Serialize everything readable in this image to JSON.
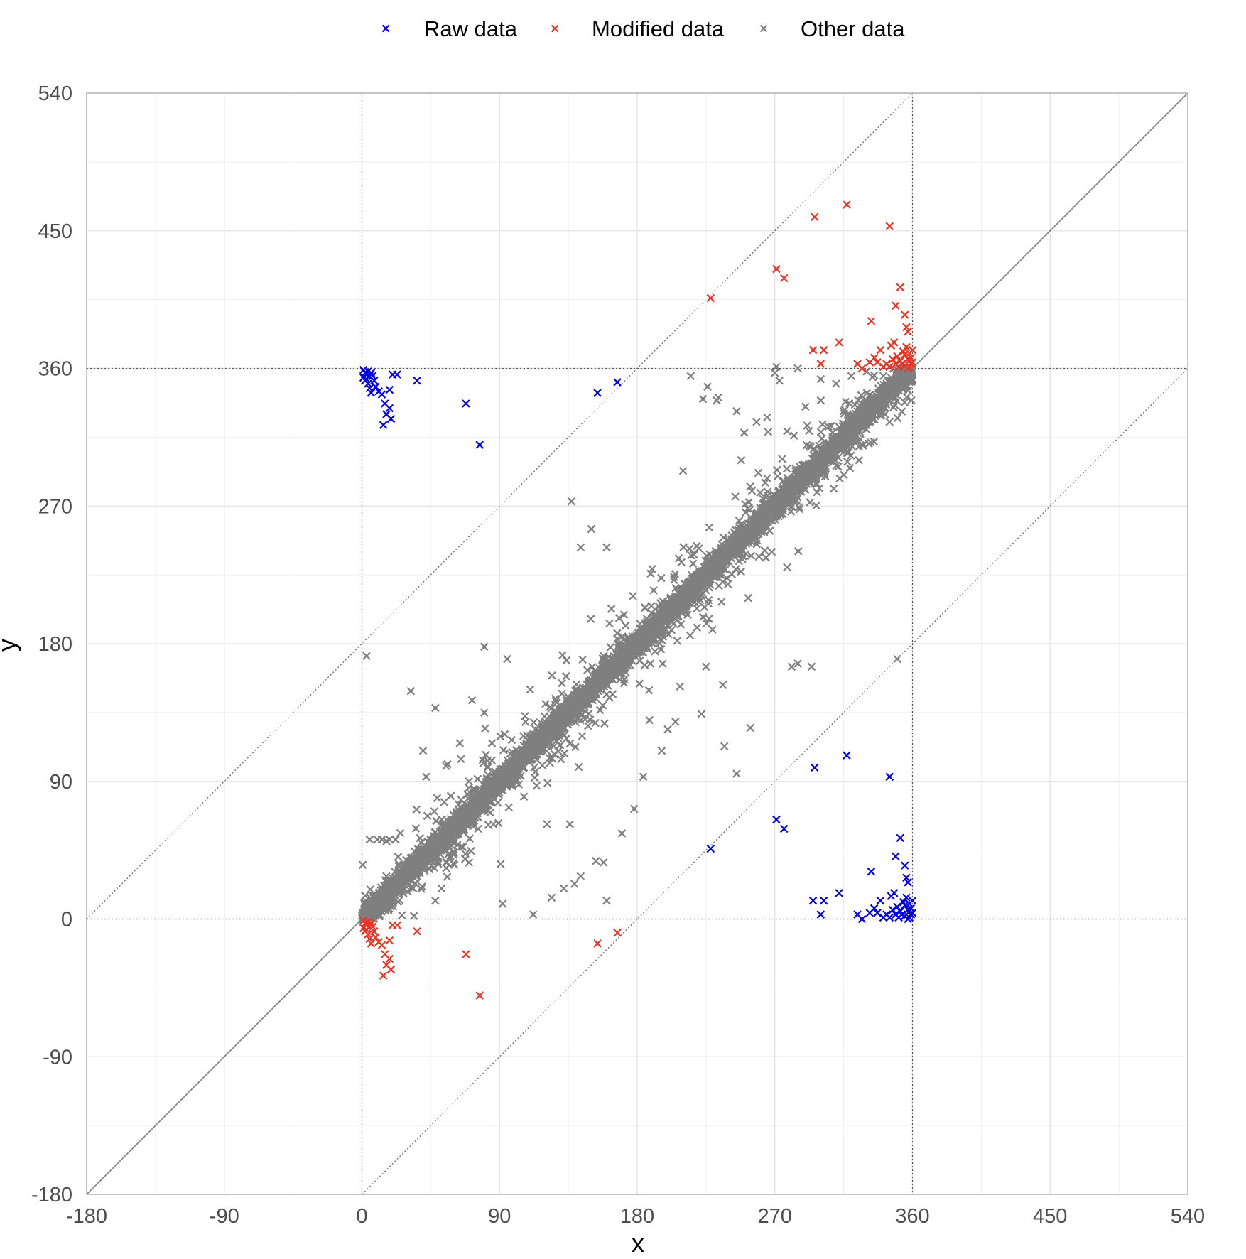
{
  "chart_data": {
    "type": "scatter",
    "xlabel": "x",
    "ylabel": "y",
    "xlim": [
      -180,
      540
    ],
    "ylim": [
      -180,
      540
    ],
    "xticks": [
      -180,
      -90,
      0,
      90,
      180,
      270,
      360,
      450,
      540
    ],
    "yticks": [
      -180,
      -90,
      0,
      90,
      180,
      270,
      360,
      450,
      540
    ],
    "grid": true,
    "legend_position": "top",
    "marker": "x",
    "reference_lines": {
      "identity": {
        "slope": 1,
        "intercept": 0,
        "style": "solid",
        "color": "#7f7f7f"
      },
      "offsets": [
        {
          "slope": 1,
          "intercept": 180,
          "style": "dotted",
          "color": "#666666"
        },
        {
          "slope": 1,
          "intercept": -180,
          "style": "dotted",
          "color": "#666666"
        }
      ],
      "vertical": [
        0,
        360
      ],
      "horizontal": [
        0,
        360
      ]
    },
    "series": [
      {
        "name": "Raw data",
        "color": "#0000ee",
        "points": [
          [
            1,
            359
          ],
          [
            2,
            357
          ],
          [
            3,
            356
          ],
          [
            4,
            358
          ],
          [
            5,
            355
          ],
          [
            1,
            354
          ],
          [
            3,
            353
          ],
          [
            6,
            357
          ],
          [
            2,
            352
          ],
          [
            4,
            350
          ],
          [
            7,
            355
          ],
          [
            8,
            352
          ],
          [
            9,
            348
          ],
          [
            5,
            347
          ],
          [
            11,
            345
          ],
          [
            6,
            344
          ],
          [
            13,
            343
          ],
          [
            18,
            346
          ],
          [
            20,
            356
          ],
          [
            23,
            356
          ],
          [
            15,
            337
          ],
          [
            18,
            334
          ],
          [
            16,
            330
          ],
          [
            19,
            327
          ],
          [
            14,
            323
          ],
          [
            36,
            352
          ],
          [
            68,
            337
          ],
          [
            77,
            310
          ],
          [
            154,
            344
          ],
          [
            167,
            351
          ],
          [
            228,
            46
          ],
          [
            271,
            65
          ],
          [
            276,
            59
          ],
          [
            296,
            99
          ],
          [
            317,
            107
          ],
          [
            345,
            93
          ],
          [
            349,
            41
          ],
          [
            352,
            53
          ],
          [
            355,
            35
          ],
          [
            357,
            24
          ],
          [
            356,
            27
          ],
          [
            333,
            31
          ],
          [
            312,
            17
          ],
          [
            295,
            12
          ],
          [
            302,
            12
          ],
          [
            300,
            3
          ],
          [
            324,
            3
          ],
          [
            327,
            0
          ],
          [
            332,
            4
          ],
          [
            335,
            7
          ],
          [
            339,
            12
          ],
          [
            343,
            3
          ],
          [
            346,
            15
          ],
          [
            348,
            17
          ],
          [
            350,
            8
          ],
          [
            352,
            5
          ],
          [
            354,
            11
          ],
          [
            355,
            2
          ],
          [
            356,
            14
          ],
          [
            357,
            6
          ],
          [
            358,
            10
          ],
          [
            359,
            3
          ],
          [
            360,
            12
          ],
          [
            358,
            1
          ],
          [
            355,
            9
          ],
          [
            351,
            1
          ],
          [
            347,
            6
          ],
          [
            337,
            4
          ],
          [
            341,
            1
          ],
          [
            359,
            7
          ],
          [
            360,
            4
          ],
          [
            357,
            0
          ],
          [
            353,
            3
          ],
          [
            349,
            3
          ],
          [
            345,
            1
          ]
        ]
      },
      {
        "name": "Modified data",
        "color": "#ee3322",
        "points": [
          [
            1,
            -1
          ],
          [
            2,
            -3
          ],
          [
            3,
            -4
          ],
          [
            4,
            -2
          ],
          [
            5,
            -5
          ],
          [
            1,
            -6
          ],
          [
            3,
            -7
          ],
          [
            6,
            -3
          ],
          [
            2,
            -8
          ],
          [
            4,
            -10
          ],
          [
            7,
            -5
          ],
          [
            8,
            -8
          ],
          [
            9,
            -12
          ],
          [
            5,
            -13
          ],
          [
            11,
            -15
          ],
          [
            6,
            -16
          ],
          [
            13,
            -17
          ],
          [
            18,
            -14
          ],
          [
            20,
            -4
          ],
          [
            23,
            -4
          ],
          [
            15,
            -23
          ],
          [
            18,
            -26
          ],
          [
            16,
            -30
          ],
          [
            19,
            -33
          ],
          [
            14,
            -37
          ],
          [
            36,
            -8
          ],
          [
            68,
            -23
          ],
          [
            77,
            -50
          ],
          [
            154,
            -16
          ],
          [
            167,
            -9
          ],
          [
            228,
            406
          ],
          [
            271,
            425
          ],
          [
            276,
            419
          ],
          [
            296,
            459
          ],
          [
            317,
            467
          ],
          [
            345,
            453
          ],
          [
            349,
            401
          ],
          [
            352,
            413
          ],
          [
            355,
            395
          ],
          [
            357,
            384
          ],
          [
            356,
            387
          ],
          [
            333,
            391
          ],
          [
            312,
            377
          ],
          [
            295,
            372
          ],
          [
            302,
            372
          ],
          [
            300,
            363
          ],
          [
            324,
            363
          ],
          [
            327,
            360
          ],
          [
            332,
            364
          ],
          [
            335,
            367
          ],
          [
            339,
            372
          ],
          [
            343,
            363
          ],
          [
            346,
            375
          ],
          [
            348,
            377
          ],
          [
            350,
            368
          ],
          [
            352,
            365
          ],
          [
            354,
            371
          ],
          [
            355,
            362
          ],
          [
            356,
            374
          ],
          [
            357,
            366
          ],
          [
            358,
            370
          ],
          [
            359,
            363
          ],
          [
            360,
            372
          ],
          [
            358,
            361
          ],
          [
            355,
            369
          ],
          [
            351,
            361
          ],
          [
            347,
            366
          ],
          [
            337,
            364
          ],
          [
            341,
            361
          ],
          [
            359,
            367
          ],
          [
            360,
            364
          ],
          [
            357,
            360
          ],
          [
            353,
            363
          ],
          [
            349,
            363
          ],
          [
            345,
            361
          ]
        ]
      },
      {
        "name": "Other data",
        "color": "#7f7f7f",
        "generator": {
          "x_range": [
            0,
            360
          ],
          "count": 5200,
          "core_spread": 4,
          "wide_spread": 16,
          "wide_fraction": 0.12,
          "seed": 12345
        },
        "points": [
          [
            3,
            172
          ],
          [
            32,
            149
          ],
          [
            18,
            52
          ],
          [
            10,
            52
          ],
          [
            13,
            52
          ],
          [
            5,
            52
          ],
          [
            22,
            52
          ],
          [
            40,
            110
          ],
          [
            42,
            93
          ],
          [
            55,
            100
          ],
          [
            62,
            70
          ],
          [
            60,
            42
          ],
          [
            52,
            20
          ],
          [
            70,
            90
          ],
          [
            72,
            143
          ],
          [
            80,
            178
          ],
          [
            95,
            170
          ],
          [
            110,
            150
          ],
          [
            118,
            124
          ],
          [
            121,
            62
          ],
          [
            136,
            62
          ],
          [
            92,
            10
          ],
          [
            112,
            3
          ],
          [
            124,
            14
          ],
          [
            132,
            20
          ],
          [
            139,
            23
          ],
          [
            143,
            28
          ],
          [
            153,
            38
          ],
          [
            158,
            37
          ],
          [
            160,
            12
          ],
          [
            170,
            56
          ],
          [
            178,
            72
          ],
          [
            184,
            93
          ],
          [
            188,
            130
          ],
          [
            196,
            110
          ],
          [
            200,
            124
          ],
          [
            205,
            129
          ],
          [
            208,
            152
          ],
          [
            222,
            134
          ],
          [
            225,
            165
          ],
          [
            236,
            153
          ],
          [
            245,
            95
          ],
          [
            237,
            113
          ],
          [
            137,
            273
          ],
          [
            143,
            243
          ],
          [
            150,
            255
          ],
          [
            160,
            243
          ],
          [
            210,
            293
          ],
          [
            233,
            341
          ],
          [
            232,
            339
          ],
          [
            226,
            348
          ],
          [
            223,
            340
          ],
          [
            215,
            355
          ],
          [
            245,
            332
          ],
          [
            250,
            318
          ],
          [
            258,
            325
          ],
          [
            265,
            328
          ],
          [
            270,
            357
          ],
          [
            271,
            361
          ],
          [
            273,
            352
          ],
          [
            278,
            319
          ],
          [
            285,
            360
          ],
          [
            290,
            335
          ],
          [
            300,
            339
          ],
          [
            248,
            300
          ],
          [
            255,
            280
          ],
          [
            262,
            275
          ],
          [
            268,
            240
          ],
          [
            278,
            230
          ],
          [
            281,
            165
          ],
          [
            285,
            167
          ],
          [
            294,
            165
          ],
          [
            254,
            125
          ],
          [
            300,
            353
          ],
          [
            310,
            350
          ],
          [
            320,
            355
          ],
          [
            342,
            330
          ],
          [
            345,
            325
          ],
          [
            350,
            170
          ],
          [
            341,
            355
          ],
          [
            330,
            358
          ],
          [
            305,
            322
          ],
          [
            318,
            305
          ],
          [
            325,
            300
          ],
          [
            108,
            120
          ],
          [
            98,
            117
          ],
          [
            102,
            107
          ],
          [
            85,
            115
          ],
          [
            48,
            138
          ],
          [
            64,
            115
          ],
          [
            79,
            104
          ],
          [
            34,
            2
          ],
          [
            48,
            12
          ],
          [
            55,
            37
          ],
          [
            66,
            47
          ],
          [
            76,
            59
          ],
          [
            86,
            62
          ],
          [
            96,
            73
          ],
          [
            106,
            80
          ]
        ]
      }
    ]
  }
}
